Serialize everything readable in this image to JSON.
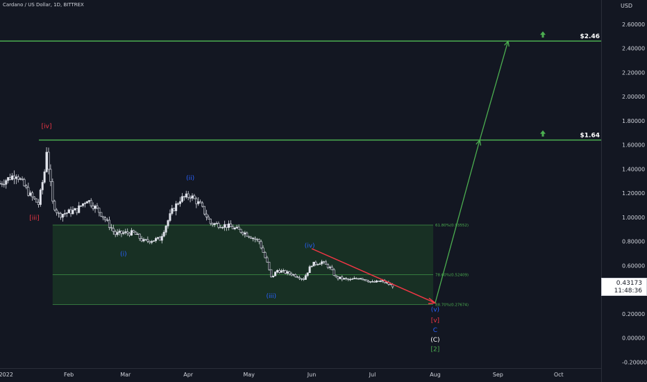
{
  "header": {
    "symbol": "Cardano / US Dollar, 1D, BITTREX"
  },
  "price_axis": {
    "currency": "USD"
  },
  "last_price": {
    "value": "0.43173",
    "countdown": "11:48:36"
  },
  "colors": {
    "background": "#131722",
    "candle": "#e0e3eb",
    "target_line": "#4caf50",
    "projection": "#4caf50",
    "red_trend": "#f23645",
    "fib_zone": "#1b3a26",
    "blue_label": "#2962ff",
    "red_label": "#f23645",
    "green_label": "#4caf50"
  },
  "chart_data": {
    "type": "candlestick",
    "ylim": [
      -0.25,
      2.72
    ],
    "yticks": [
      2.6,
      2.4,
      2.2,
      2.0,
      1.8,
      1.6,
      1.4,
      1.2,
      1.0,
      0.8,
      0.6,
      0.4,
      0.2,
      0.0,
      -0.2
    ],
    "ytick_labels": [
      "2.60000",
      "2.40000",
      "2.20000",
      "2.00000",
      "1.80000",
      "1.60000",
      "1.40000",
      "1.20000",
      "1.00000",
      "0.80000",
      "0.60000",
      "0.40000",
      "0.20000",
      "0.00000",
      "-0.20000"
    ],
    "xticks": [
      {
        "label": "2022",
        "date": "2022-01-01"
      },
      {
        "label": "Feb",
        "date": "2022-02-01"
      },
      {
        "label": "Mar",
        "date": "2022-03-01"
      },
      {
        "label": "Apr",
        "date": "2022-04-01"
      },
      {
        "label": "May",
        "date": "2022-05-01"
      },
      {
        "label": "Jun",
        "date": "2022-06-01"
      },
      {
        "label": "Jul",
        "date": "2022-07-01"
      },
      {
        "label": "Aug",
        "date": "2022-08-01"
      },
      {
        "label": "Sep",
        "date": "2022-09-01"
      },
      {
        "label": "Oct",
        "date": "2022-10-01"
      }
    ],
    "xlim": [
      "2021-12-29",
      "2022-10-22"
    ],
    "price_path": [
      {
        "date": "2021-12-29",
        "price": 1.28
      },
      {
        "date": "2022-01-06",
        "price": 1.36
      },
      {
        "date": "2022-01-13",
        "price": 1.18
      },
      {
        "date": "2022-01-17",
        "price": 1.11
      },
      {
        "date": "2022-01-20",
        "price": 1.38
      },
      {
        "date": "2022-01-21",
        "price": 1.56
      },
      {
        "date": "2022-01-24",
        "price": 1.12
      },
      {
        "date": "2022-01-27",
        "price": 1.02
      },
      {
        "date": "2022-02-05",
        "price": 1.06
      },
      {
        "date": "2022-02-10",
        "price": 1.15
      },
      {
        "date": "2022-02-17",
        "price": 1.03
      },
      {
        "date": "2022-02-24",
        "price": 0.86
      },
      {
        "date": "2022-02-28",
        "price": 0.87
      },
      {
        "date": "2022-03-05",
        "price": 0.87
      },
      {
        "date": "2022-03-10",
        "price": 0.8
      },
      {
        "date": "2022-03-18",
        "price": 0.82
      },
      {
        "date": "2022-03-24",
        "price": 1.05
      },
      {
        "date": "2022-03-28",
        "price": 1.15
      },
      {
        "date": "2022-04-02",
        "price": 1.18
      },
      {
        "date": "2022-04-07",
        "price": 1.1
      },
      {
        "date": "2022-04-12",
        "price": 0.95
      },
      {
        "date": "2022-04-20",
        "price": 0.93
      },
      {
        "date": "2022-04-28",
        "price": 0.88
      },
      {
        "date": "2022-05-06",
        "price": 0.8
      },
      {
        "date": "2022-05-10",
        "price": 0.62
      },
      {
        "date": "2022-05-12",
        "price": 0.5
      },
      {
        "date": "2022-05-15",
        "price": 0.56
      },
      {
        "date": "2022-05-22",
        "price": 0.53
      },
      {
        "date": "2022-05-28",
        "price": 0.49
      },
      {
        "date": "2022-06-01",
        "price": 0.61
      },
      {
        "date": "2022-06-06",
        "price": 0.63
      },
      {
        "date": "2022-06-10",
        "price": 0.58
      },
      {
        "date": "2022-06-13",
        "price": 0.5
      },
      {
        "date": "2022-06-20",
        "price": 0.48
      },
      {
        "date": "2022-06-25",
        "price": 0.5
      },
      {
        "date": "2022-07-01",
        "price": 0.46
      },
      {
        "date": "2022-07-06",
        "price": 0.47
      },
      {
        "date": "2022-07-11",
        "price": 0.43173
      }
    ],
    "horizontal_levels": [
      {
        "price": 2.46,
        "label": "$2.46"
      },
      {
        "price": 1.64,
        "label": "$1.64"
      }
    ],
    "fib_zone": {
      "start": "2022-01-24",
      "end": "2022-07-31",
      "levels": [
        {
          "price": 0.93552,
          "label": "61.80%(0.93552)"
        },
        {
          "price": 0.52409,
          "label": "78.60%(0.52409)"
        },
        {
          "price": 0.27674,
          "label": "88.70%(0.27674)"
        }
      ]
    },
    "red_trendline": {
      "from": {
        "date": "2022-06-01",
        "price": 0.74
      },
      "to": {
        "date": "2022-08-01",
        "price": 0.29
      }
    },
    "projection": [
      {
        "date": "2022-08-01",
        "price": 0.29
      },
      {
        "date": "2022-08-23",
        "price": 1.64
      },
      {
        "date": "2022-09-06",
        "price": 2.46
      }
    ],
    "wave_labels": [
      {
        "text": "[iv]",
        "date": "2022-01-21",
        "price": 1.74,
        "color": "red"
      },
      {
        "text": "[iii]",
        "date": "2022-01-15",
        "price": 0.98,
        "color": "red"
      },
      {
        "text": "(i)",
        "date": "2022-02-28",
        "price": 0.68,
        "color": "blue"
      },
      {
        "text": "(ii)",
        "date": "2022-04-02",
        "price": 1.31,
        "color": "blue"
      },
      {
        "text": "(iii)",
        "date": "2022-05-12",
        "price": 0.33,
        "color": "blue"
      },
      {
        "text": "(iv)",
        "date": "2022-05-31",
        "price": 0.75,
        "color": "blue"
      },
      {
        "text": "(v)",
        "date": "2022-08-01",
        "price": 0.22,
        "color": "blue"
      },
      {
        "text": "[v]",
        "date": "2022-08-01",
        "price": 0.13,
        "color": "red"
      },
      {
        "text": "C",
        "date": "2022-08-01",
        "price": 0.05,
        "color": "blue"
      },
      {
        "text": "(C)",
        "date": "2022-08-01",
        "price": -0.03,
        "color": "white"
      },
      {
        "text": "[2]",
        "date": "2022-08-01",
        "price": -0.11,
        "color": "green"
      }
    ]
  }
}
